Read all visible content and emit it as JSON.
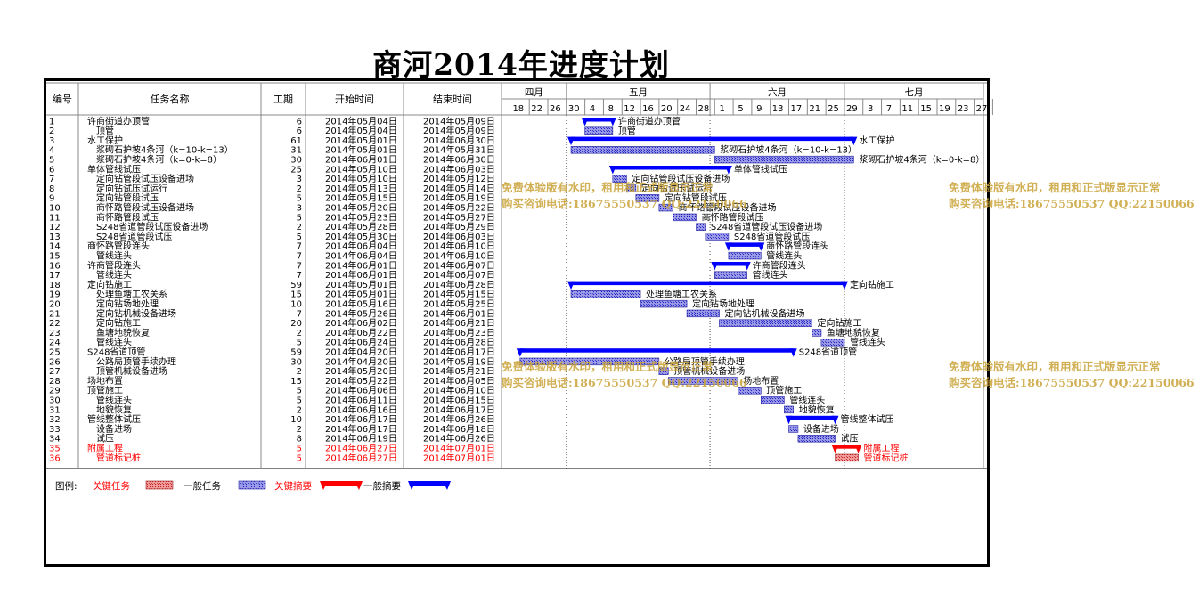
{
  "title": "商河2014年进度计划",
  "headers": {
    "id": "编号",
    "name": "任务名称",
    "dur": "工期",
    "start": "开始时间",
    "end": "结束时间"
  },
  "months": [
    {
      "label": "四月",
      "start": "2014-04-16",
      "end": "2014-04-30"
    },
    {
      "label": "五月",
      "start": "2014-04-30",
      "end": "2014-05-31"
    },
    {
      "label": "六月",
      "start": "2014-05-31",
      "end": "2014-06-29"
    },
    {
      "label": "七月",
      "start": "2014-06-29",
      "end": "2014-07-29"
    }
  ],
  "day_ticks": [
    "18",
    "22",
    "26",
    "30",
    "4",
    "8",
    "12",
    "16",
    "20",
    "24",
    "28",
    "1",
    "5",
    "9",
    "13",
    "17",
    "21",
    "25",
    "29",
    "3",
    "7",
    "11",
    "15",
    "19",
    "23",
    "27"
  ],
  "chart_data": {
    "type": "gantt",
    "title": "商河2014年进度计划",
    "x_range": [
      "2014-04-16",
      "2014-07-29"
    ],
    "tasks": [
      {
        "id": "1",
        "name": "许商街道办顶管",
        "dur": "6",
        "start": "2014年05月04日",
        "end": "2014年05月09日",
        "s": "2014-05-04",
        "e": "2014-05-09",
        "kind": "summary",
        "level": 0
      },
      {
        "id": "2",
        "name": "顶管",
        "dur": "6",
        "start": "2014年05月04日",
        "end": "2014年05月09日",
        "s": "2014-05-04",
        "e": "2014-05-09",
        "kind": "task",
        "level": 1
      },
      {
        "id": "3",
        "name": "水工保护",
        "dur": "61",
        "start": "2014年05月01日",
        "end": "2014年06月30日",
        "s": "2014-05-01",
        "e": "2014-06-30",
        "kind": "summary",
        "level": 0
      },
      {
        "id": "4",
        "name": "浆砌石护坡4条河（k=10-k=13）",
        "dur": "31",
        "start": "2014年05月01日",
        "end": "2014年05月31日",
        "s": "2014-05-01",
        "e": "2014-05-31",
        "kind": "task",
        "level": 1
      },
      {
        "id": "5",
        "name": "浆砌石护坡4条河（k=0-k=8）",
        "dur": "30",
        "start": "2014年06月01日",
        "end": "2014年06月30日",
        "s": "2014-06-01",
        "e": "2014-06-30",
        "kind": "task",
        "level": 1
      },
      {
        "id": "6",
        "name": "单体管线试压",
        "dur": "25",
        "start": "2014年05月10日",
        "end": "2014年06月03日",
        "s": "2014-05-10",
        "e": "2014-06-03",
        "kind": "summary",
        "level": 0
      },
      {
        "id": "7",
        "name": "定向钻管段试压设备进场",
        "dur": "3",
        "start": "2014年05月10日",
        "end": "2014年05月12日",
        "s": "2014-05-10",
        "e": "2014-05-12",
        "kind": "task",
        "level": 1
      },
      {
        "id": "8",
        "name": "定向钻试压试运行",
        "dur": "2",
        "start": "2014年05月13日",
        "end": "2014年05月14日",
        "s": "2014-05-13",
        "e": "2014-05-14",
        "kind": "task",
        "level": 1
      },
      {
        "id": "9",
        "name": "定向钻管段试压",
        "dur": "5",
        "start": "2014年05月15日",
        "end": "2014年05月19日",
        "s": "2014-05-15",
        "e": "2014-05-19",
        "kind": "task",
        "level": 1
      },
      {
        "id": "10",
        "name": "商怀路管段试压设备进场",
        "dur": "3",
        "start": "2014年05月20日",
        "end": "2014年05月22日",
        "s": "2014-05-20",
        "e": "2014-05-22",
        "kind": "task",
        "level": 1
      },
      {
        "id": "11",
        "name": "商怀路管段试压",
        "dur": "5",
        "start": "2014年05月23日",
        "end": "2014年05月27日",
        "s": "2014-05-23",
        "e": "2014-05-27",
        "kind": "task",
        "level": 1
      },
      {
        "id": "12",
        "name": "S248省道管段试压设备进场",
        "dur": "2",
        "start": "2014年05月28日",
        "end": "2014年05月29日",
        "s": "2014-05-28",
        "e": "2014-05-29",
        "kind": "task",
        "level": 1
      },
      {
        "id": "13",
        "name": "S248省道管段试压",
        "dur": "5",
        "start": "2014年05月30日",
        "end": "2014年06月03日",
        "s": "2014-05-30",
        "e": "2014-06-03",
        "kind": "task",
        "level": 1
      },
      {
        "id": "14",
        "name": "商怀路管段连头",
        "dur": "7",
        "start": "2014年06月04日",
        "end": "2014年06月10日",
        "s": "2014-06-04",
        "e": "2014-06-10",
        "kind": "summary",
        "level": 0
      },
      {
        "id": "15",
        "name": "管线连头",
        "dur": "7",
        "start": "2014年06月04日",
        "end": "2014年06月10日",
        "s": "2014-06-04",
        "e": "2014-06-10",
        "kind": "task",
        "level": 1
      },
      {
        "id": "16",
        "name": "许商管段连头",
        "dur": "7",
        "start": "2014年06月01日",
        "end": "2014年06月07日",
        "s": "2014-06-01",
        "e": "2014-06-07",
        "kind": "summary",
        "level": 0
      },
      {
        "id": "17",
        "name": "管线连头",
        "dur": "7",
        "start": "2014年06月01日",
        "end": "2014年06月07日",
        "s": "2014-06-01",
        "e": "2014-06-07",
        "kind": "task",
        "level": 1
      },
      {
        "id": "18",
        "name": "定向钻施工",
        "dur": "59",
        "start": "2014年05月01日",
        "end": "2014年06月28日",
        "s": "2014-05-01",
        "e": "2014-06-28",
        "kind": "summary",
        "level": 0
      },
      {
        "id": "19",
        "name": "处理鱼塘工农关系",
        "dur": "15",
        "start": "2014年05月01日",
        "end": "2014年05月15日",
        "s": "2014-05-01",
        "e": "2014-05-15",
        "kind": "task",
        "level": 1
      },
      {
        "id": "20",
        "name": "定向钻场地处理",
        "dur": "10",
        "start": "2014年05月16日",
        "end": "2014年05月25日",
        "s": "2014-05-16",
        "e": "2014-05-25",
        "kind": "task",
        "level": 1
      },
      {
        "id": "21",
        "name": "定向钻机械设备进场",
        "dur": "7",
        "start": "2014年05月26日",
        "end": "2014年06月01日",
        "s": "2014-05-26",
        "e": "2014-06-01",
        "kind": "task",
        "level": 1
      },
      {
        "id": "22",
        "name": "定向钻施工",
        "dur": "20",
        "start": "2014年06月02日",
        "end": "2014年06月21日",
        "s": "2014-06-02",
        "e": "2014-06-21",
        "kind": "task",
        "level": 1
      },
      {
        "id": "23",
        "name": "鱼塘地貌恢复",
        "dur": "2",
        "start": "2014年06月22日",
        "end": "2014年06月23日",
        "s": "2014-06-22",
        "e": "2014-06-23",
        "kind": "task",
        "level": 1
      },
      {
        "id": "24",
        "name": "管线连头",
        "dur": "5",
        "start": "2014年06月24日",
        "end": "2014年06月28日",
        "s": "2014-06-24",
        "e": "2014-06-28",
        "kind": "task",
        "level": 1
      },
      {
        "id": "25",
        "name": "S248省道顶管",
        "dur": "59",
        "start": "2014年04月20日",
        "end": "2014年06月17日",
        "s": "2014-04-20",
        "e": "2014-06-17",
        "kind": "summary",
        "level": 0
      },
      {
        "id": "26",
        "name": "公路局顶管手续办理",
        "dur": "30",
        "start": "2014年04月20日",
        "end": "2014年05月19日",
        "s": "2014-04-20",
        "e": "2014-05-19",
        "kind": "task",
        "level": 1
      },
      {
        "id": "27",
        "name": "顶管机械设备进场",
        "dur": "2",
        "start": "2014年05月20日",
        "end": "2014年05月21日",
        "s": "2014-05-20",
        "e": "2014-05-21",
        "kind": "task",
        "level": 1
      },
      {
        "id": "28",
        "name": "场地布置",
        "dur": "15",
        "start": "2014年05月22日",
        "end": "2014年06月05日",
        "s": "2014-05-22",
        "e": "2014-06-05",
        "kind": "task",
        "level": 0
      },
      {
        "id": "29",
        "name": "顶管施工",
        "dur": "5",
        "start": "2014年06月06日",
        "end": "2014年06月10日",
        "s": "2014-06-06",
        "e": "2014-06-10",
        "kind": "task",
        "level": 0
      },
      {
        "id": "30",
        "name": "管线连头",
        "dur": "5",
        "start": "2014年06月11日",
        "end": "2014年06月15日",
        "s": "2014-06-11",
        "e": "2014-06-15",
        "kind": "task",
        "level": 1
      },
      {
        "id": "31",
        "name": "地貌恢复",
        "dur": "2",
        "start": "2014年06月16日",
        "end": "2014年06月17日",
        "s": "2014-06-16",
        "e": "2014-06-17",
        "kind": "task",
        "level": 1
      },
      {
        "id": "32",
        "name": "管线整体试压",
        "dur": "10",
        "start": "2014年06月17日",
        "end": "2014年06月26日",
        "s": "2014-06-17",
        "e": "2014-06-26",
        "kind": "summary",
        "level": 0
      },
      {
        "id": "33",
        "name": "设备进场",
        "dur": "2",
        "start": "2014年06月17日",
        "end": "2014年06月18日",
        "s": "2014-06-17",
        "e": "2014-06-18",
        "kind": "task",
        "level": 1
      },
      {
        "id": "34",
        "name": "试压",
        "dur": "8",
        "start": "2014年06月19日",
        "end": "2014年06月26日",
        "s": "2014-06-19",
        "e": "2014-06-26",
        "kind": "task",
        "level": 1
      },
      {
        "id": "35",
        "name": "附属工程",
        "dur": "5",
        "start": "2014年06月27日",
        "end": "2014年07月01日",
        "s": "2014-06-27",
        "e": "2014-07-01",
        "kind": "critical-summary",
        "level": 0
      },
      {
        "id": "36",
        "name": "管道标记桩",
        "dur": "5",
        "start": "2014年06月27日",
        "end": "2014年07月01日",
        "s": "2014-06-27",
        "e": "2014-07-01",
        "kind": "critical-task",
        "level": 1
      }
    ]
  },
  "legend": {
    "label": "图例:",
    "items": [
      {
        "label": "关键任务",
        "kind": "critical-task"
      },
      {
        "label": "一般任务",
        "kind": "task"
      },
      {
        "label": "关键摘要",
        "kind": "critical-summary"
      },
      {
        "label": "一般摘要",
        "kind": "summary"
      }
    ]
  },
  "watermark": {
    "line1": "免费体验版有水印，租用和正式版显示正常",
    "line2": "购买咨询电话:18675550537 QQ:22150066"
  },
  "colors": {
    "summary": "#0000ff",
    "task_fill": "#7b7bd6",
    "critical": "#ff0000",
    "critical_fill": "#e66666",
    "watermark": "#c9a338",
    "today_line": "#000000"
  }
}
